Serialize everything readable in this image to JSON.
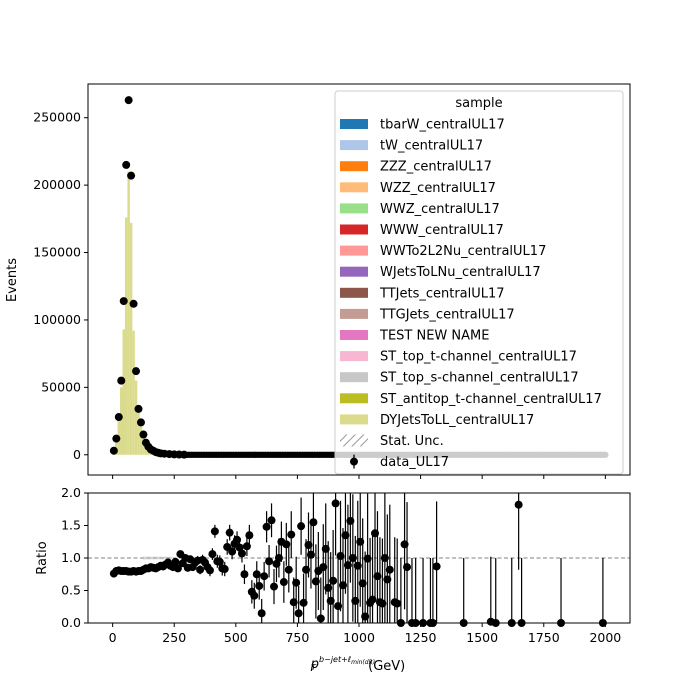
{
  "chart_data": [
    {
      "type": "bar",
      "panel": "main",
      "ylabel": "Events",
      "xlim": [
        -100,
        2100
      ],
      "ylim": [
        -15000,
        275000
      ],
      "y_ticks": [
        0,
        50000,
        100000,
        150000,
        200000,
        250000
      ],
      "y_tick_labels": [
        "0",
        "50000",
        "100000",
        "150000",
        "200000",
        "250000"
      ],
      "legend": {
        "title": "sample",
        "placement": "top-right",
        "entries": [
          {
            "label": "tbarW_centralUL17",
            "color": "#1f77b4",
            "kind": "patch"
          },
          {
            "label": "tW_centralUL17",
            "color": "#aec7e8",
            "kind": "patch"
          },
          {
            "label": "ZZZ_centralUL17",
            "color": "#ff7f0e",
            "kind": "patch"
          },
          {
            "label": "WZZ_centralUL17",
            "color": "#ffbb78",
            "kind": "patch"
          },
          {
            "label": "WWZ_centralUL17",
            "color": "#98df8a",
            "kind": "patch"
          },
          {
            "label": "WWW_centralUL17",
            "color": "#d62728",
            "kind": "patch"
          },
          {
            "label": "WWTo2L2Nu_centralUL17",
            "color": "#ff9896",
            "kind": "patch"
          },
          {
            "label": "WJetsToLNu_centralUL17",
            "color": "#9467bd",
            "kind": "patch"
          },
          {
            "label": "TTJets_centralUL17",
            "color": "#8c564b",
            "kind": "patch"
          },
          {
            "label": "TTGJets_centralUL17",
            "color": "#c49c94",
            "kind": "patch"
          },
          {
            "label": "TEST NEW NAME",
            "color": "#e377c2",
            "kind": "patch"
          },
          {
            "label": "ST_top_t-channel_centralUL17",
            "color": "#f7b6d2",
            "kind": "patch"
          },
          {
            "label": "ST_top_s-channel_centralUL17",
            "color": "#c7c7c7",
            "kind": "patch"
          },
          {
            "label": "ST_antitop_t-channel_centralUL17",
            "color": "#bcbd22",
            "kind": "patch"
          },
          {
            "label": "DYJetsToLL_centralUL17",
            "color": "#dbdb8d",
            "kind": "patch"
          },
          {
            "label": "Stat. Unc.",
            "color": "#808080",
            "kind": "hatch"
          },
          {
            "label": "data_UL17",
            "color": "#000000",
            "kind": "marker"
          }
        ]
      },
      "histogram": {
        "name": "DYJetsToLL_centralUL17",
        "color": "#dbdb8d",
        "bins": [
          [
            0,
            10,
            3000
          ],
          [
            10,
            20,
            11000
          ],
          [
            20,
            30,
            26000
          ],
          [
            30,
            40,
            50000
          ],
          [
            40,
            50,
            93000
          ],
          [
            50,
            60,
            176000
          ],
          [
            60,
            70,
            210000
          ],
          [
            70,
            80,
            172000
          ],
          [
            80,
            90,
            92000
          ],
          [
            90,
            100,
            55000
          ],
          [
            100,
            110,
            35000
          ],
          [
            110,
            120,
            22000
          ],
          [
            120,
            130,
            14000
          ],
          [
            130,
            140,
            9000
          ],
          [
            140,
            150,
            6000
          ],
          [
            150,
            160,
            4000
          ],
          [
            160,
            170,
            3000
          ],
          [
            170,
            180,
            2000
          ],
          [
            180,
            190,
            1500
          ],
          [
            190,
            200,
            1000
          ]
        ]
      },
      "data_points": {
        "name": "data_UL17",
        "x": [
          5,
          15,
          25,
          35,
          45,
          55,
          65,
          75,
          85,
          95,
          105,
          115,
          125,
          135,
          145,
          155,
          165,
          175,
          185,
          195,
          210,
          230,
          250,
          270,
          290
        ],
        "y": [
          3000,
          12000,
          28000,
          55000,
          114000,
          215000,
          263000,
          207000,
          112000,
          62000,
          34000,
          24000,
          15000,
          9000,
          6000,
          4000,
          3000,
          2000,
          1500,
          1000,
          800,
          500,
          300,
          200,
          100
        ],
        "baseline": {
          "from": 300,
          "to": 2000,
          "step": 10,
          "value": 0
        }
      }
    },
    {
      "type": "scatter",
      "panel": "ratio",
      "ylabel": "Ratio",
      "xlabel": "p_T^{b-jet+ℓ_min(dR)} (GeV)",
      "xlim": [
        -100,
        2100
      ],
      "ylim": [
        0,
        2.0
      ],
      "x_ticks": [
        0,
        250,
        500,
        750,
        1000,
        1250,
        1500,
        1750,
        2000
      ],
      "x_tick_labels": [
        "0",
        "250",
        "500",
        "750",
        "1000",
        "1250",
        "1500",
        "1750",
        "2000"
      ],
      "y_ticks": [
        0.0,
        0.5,
        1.0,
        1.5,
        2.0
      ],
      "y_tick_labels": [
        "0.0",
        "0.5",
        "1.0",
        "1.5",
        "2.0"
      ],
      "reference_line": 1.0,
      "points": [
        [
          5,
          0.76,
          0.0
        ],
        [
          15,
          0.8,
          0.0
        ],
        [
          25,
          0.81,
          0.0
        ],
        [
          35,
          0.8,
          0.0
        ],
        [
          45,
          0.8,
          0.0
        ],
        [
          55,
          0.8,
          0.0
        ],
        [
          65,
          0.79,
          0.0
        ],
        [
          75,
          0.79,
          0.0
        ],
        [
          85,
          0.8,
          0.0
        ],
        [
          95,
          0.79,
          0.0
        ],
        [
          105,
          0.8,
          0.0
        ],
        [
          115,
          0.8,
          0.0
        ],
        [
          125,
          0.82,
          0.0
        ],
        [
          135,
          0.84,
          0.0
        ],
        [
          145,
          0.84,
          0.0
        ],
        [
          155,
          0.86,
          0.0
        ],
        [
          165,
          0.85,
          0.0
        ],
        [
          175,
          0.84,
          0.0
        ],
        [
          185,
          0.86,
          0.0
        ],
        [
          195,
          0.88,
          0.0
        ],
        [
          205,
          0.87,
          0.02
        ],
        [
          215,
          0.9,
          0.02
        ],
        [
          225,
          0.93,
          0.03
        ],
        [
          235,
          0.88,
          0.03
        ],
        [
          245,
          0.86,
          0.03
        ],
        [
          255,
          0.94,
          0.04
        ],
        [
          265,
          0.84,
          0.04
        ],
        [
          275,
          1.06,
          0.05
        ],
        [
          285,
          0.92,
          0.05
        ],
        [
          295,
          1.0,
          0.05
        ],
        [
          305,
          0.85,
          0.06
        ],
        [
          315,
          0.98,
          0.06
        ],
        [
          325,
          0.86,
          0.06
        ],
        [
          335,
          0.93,
          0.07
        ],
        [
          345,
          0.96,
          0.07
        ],
        [
          355,
          0.82,
          0.07
        ],
        [
          365,
          0.97,
          0.08
        ],
        [
          375,
          0.93,
          0.08
        ],
        [
          385,
          0.86,
          0.08
        ],
        [
          395,
          0.81,
          0.09
        ],
        [
          405,
          1.06,
          0.09
        ],
        [
          415,
          1.41,
          0.1
        ],
        [
          425,
          0.95,
          0.1
        ],
        [
          435,
          0.94,
          0.1
        ],
        [
          445,
          0.84,
          0.11
        ],
        [
          455,
          0.83,
          0.11
        ],
        [
          465,
          1.17,
          0.12
        ],
        [
          475,
          1.39,
          0.12
        ],
        [
          485,
          1.1,
          0.12
        ],
        [
          495,
          1.22,
          0.13
        ],
        [
          505,
          1.28,
          0.13
        ],
        [
          515,
          1.16,
          0.14
        ],
        [
          525,
          1.07,
          0.14
        ],
        [
          535,
          0.75,
          0.15
        ],
        [
          545,
          1.18,
          0.15
        ],
        [
          555,
          1.35,
          0.16
        ],
        [
          565,
          0.48,
          0.18
        ],
        [
          575,
          0.42,
          0.2
        ],
        [
          585,
          0.75,
          0.2
        ],
        [
          595,
          0.57,
          0.21
        ],
        [
          605,
          0.15,
          0.22
        ],
        [
          615,
          0.72,
          0.22
        ],
        [
          625,
          1.48,
          0.24
        ],
        [
          635,
          0.95,
          0.25
        ],
        [
          645,
          1.58,
          0.26
        ],
        [
          655,
          0.56,
          0.27
        ],
        [
          665,
          0.91,
          0.28
        ],
        [
          675,
          1.0,
          0.3
        ],
        [
          685,
          1.25,
          0.31
        ],
        [
          695,
          0.63,
          0.32
        ],
        [
          705,
          1.21,
          0.33
        ],
        [
          715,
          0.82,
          0.35
        ],
        [
          725,
          1.36,
          0.36
        ],
        [
          735,
          0.32,
          0.38
        ],
        [
          745,
          0.62,
          0.4
        ],
        [
          755,
          0.15,
          0.42
        ],
        [
          765,
          1.49,
          0.44
        ],
        [
          775,
          0.31,
          0.45
        ],
        [
          785,
          0.82,
          0.47
        ],
        [
          795,
          1.2,
          0.5
        ],
        [
          805,
          1.05,
          0.52
        ],
        [
          815,
          1.55,
          0.55
        ],
        [
          825,
          0.64,
          0.57
        ],
        [
          835,
          0.8,
          0.6
        ],
        [
          845,
          0.07,
          0.63
        ],
        [
          855,
          0.86,
          0.66
        ],
        [
          865,
          1.14,
          0.7
        ],
        [
          875,
          0.54,
          0.72
        ],
        [
          885,
          0.34,
          0.75
        ],
        [
          895,
          0.65,
          0.78
        ],
        [
          905,
          1.84,
          0.8
        ],
        [
          915,
          0.26,
          0.82
        ],
        [
          925,
          1.03,
          0.85
        ],
        [
          935,
          0.58,
          0.88
        ],
        [
          945,
          1.35,
          0.9
        ],
        [
          955,
          0.89,
          0.93
        ],
        [
          965,
          1.57,
          0.95
        ],
        [
          975,
          1.0,
          0.98
        ],
        [
          985,
          0.34,
          1.0
        ],
        [
          995,
          0.88,
          1.0
        ],
        [
          1005,
          1.25,
          1.0
        ],
        [
          1015,
          0.61,
          1.0
        ],
        [
          1025,
          0.1,
          1.0
        ],
        [
          1035,
          0.99,
          1.0
        ],
        [
          1045,
          0.31,
          1.0
        ],
        [
          1055,
          0.36,
          1.0
        ],
        [
          1065,
          1.38,
          1.0
        ],
        [
          1075,
          0.72,
          1.0
        ],
        [
          1085,
          0.32,
          1.0
        ],
        [
          1095,
          0.3,
          1.0
        ],
        [
          1105,
          1.0,
          1.0
        ],
        [
          1115,
          0.67,
          1.0
        ],
        [
          1125,
          0.82,
          1.0
        ],
        [
          1145,
          0.32,
          1.0
        ],
        [
          1155,
          0.3,
          1.0
        ],
        [
          1170,
          0.0,
          1.0
        ],
        [
          1185,
          1.21,
          1.0
        ],
        [
          1195,
          0.86,
          1.0
        ],
        [
          1215,
          0.0,
          1.0
        ],
        [
          1230,
          0.0,
          1.0
        ],
        [
          1260,
          0.0,
          1.0
        ],
        [
          1290,
          0.0,
          1.0
        ],
        [
          1300,
          0.0,
          1.0
        ],
        [
          1315,
          0.87,
          1.0
        ],
        [
          1425,
          0.0,
          1.0
        ],
        [
          1535,
          0.02,
          1.0
        ],
        [
          1555,
          0.0,
          1.0
        ],
        [
          1620,
          0.0,
          1.0
        ],
        [
          1648,
          1.82,
          1.0
        ],
        [
          1660,
          0.0,
          1.0
        ],
        [
          1820,
          0.0,
          1.0
        ],
        [
          1990,
          0.0,
          1.0
        ]
      ]
    }
  ]
}
